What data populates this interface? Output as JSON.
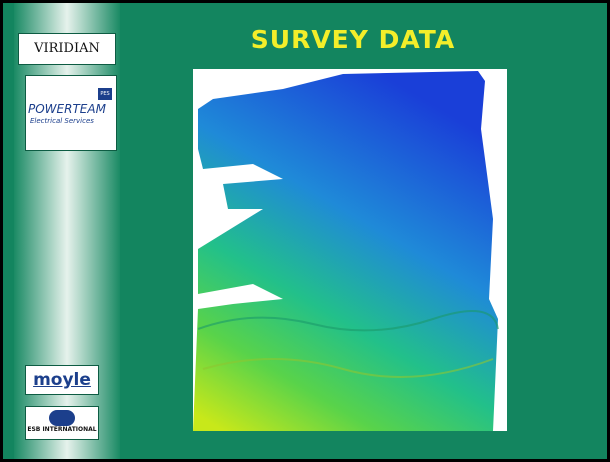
{
  "title": "SURVEY DATA",
  "sidebar": {
    "logos": [
      {
        "text": "VIRIDIAN"
      },
      {
        "text": "POWERTEAM",
        "badge": "PES",
        "subtitle": "Electrical Services"
      },
      {
        "text": "moyle"
      },
      {
        "text": "ESB INTERNATIONAL"
      }
    ]
  }
}
